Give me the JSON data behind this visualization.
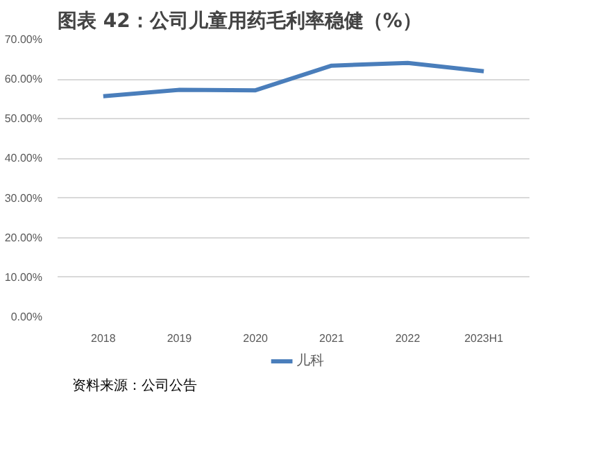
{
  "chart_data": {
    "type": "line",
    "title": "图表 42：公司儿童用药毛利率稳健（%）",
    "categories": [
      "2018",
      "2019",
      "2020",
      "2021",
      "2022",
      "2023H1"
    ],
    "series": [
      {
        "name": "儿科",
        "color": "#4a7ebb",
        "values": [
          55.7,
          57.3,
          57.2,
          63.4,
          64.1,
          62.0
        ]
      }
    ],
    "ylim": [
      0,
      70
    ],
    "yticks": [
      {
        "value": 0,
        "label": "0.00%"
      },
      {
        "value": 10,
        "label": "10.00%"
      },
      {
        "value": 20,
        "label": "20.00%"
      },
      {
        "value": 30,
        "label": "30.00%"
      },
      {
        "value": 40,
        "label": "40.00%"
      },
      {
        "value": 50,
        "label": "50.00%"
      },
      {
        "value": 60,
        "label": "60.00%"
      },
      {
        "value": 70,
        "label": "70.00%"
      }
    ],
    "grid": "y",
    "legend": "bottom",
    "marker": "none",
    "line_style": "solid",
    "annotations": [
      "资料来源：公司公告"
    ]
  }
}
